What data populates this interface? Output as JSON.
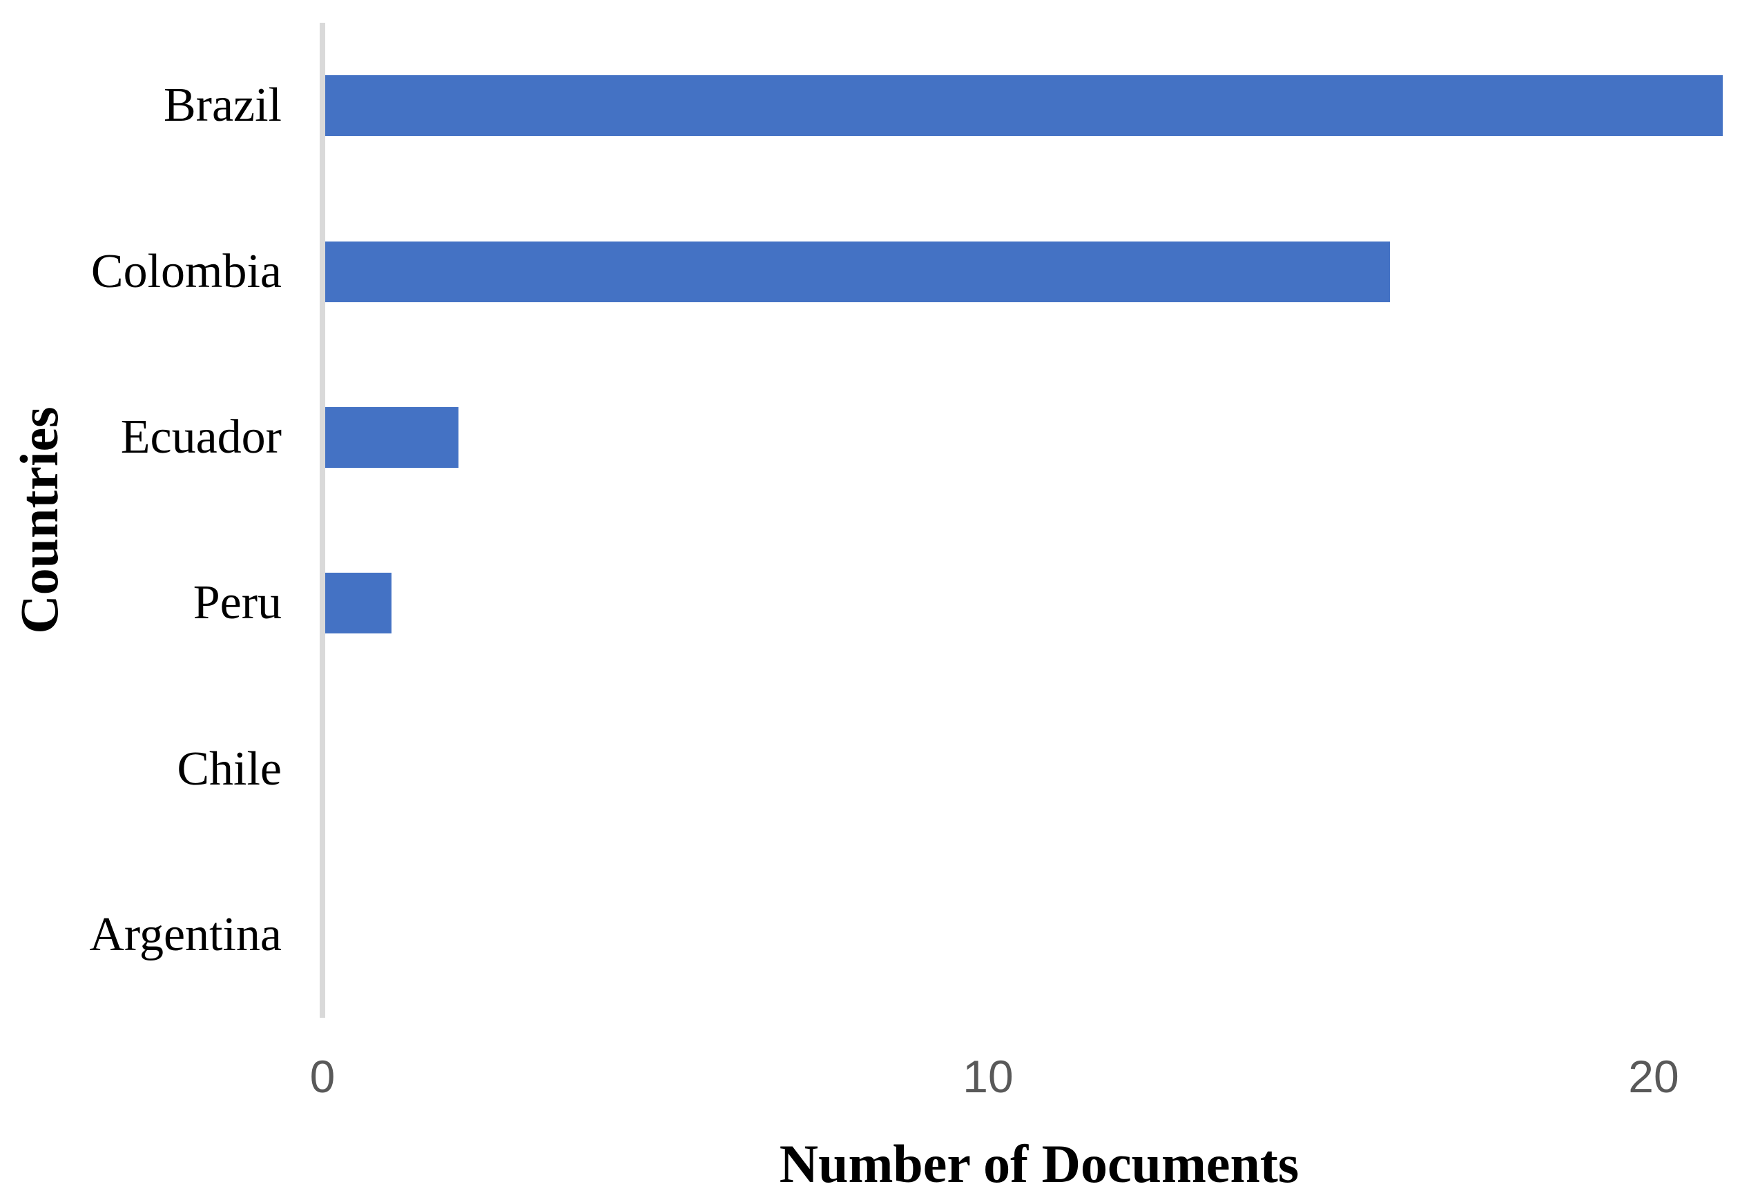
{
  "chart_data": {
    "type": "bar",
    "orientation": "horizontal",
    "title": "",
    "xlabel": "Number of Documents",
    "ylabel": "Countries",
    "categories": [
      "Brazil",
      "Colombia",
      "Ecuador",
      "Peru",
      "Chile",
      "Argentina"
    ],
    "values": [
      21,
      16,
      2,
      1,
      0,
      0
    ],
    "xticks": [
      0,
      10,
      20
    ],
    "xlim": [
      0,
      21.3
    ],
    "grid": false,
    "legend": null,
    "bar_color": "#4472C4",
    "axis_line_color": "#D9D9D9",
    "tick_label_color": "#595959",
    "category_label_color": "#000000",
    "background_color": "#FFFFFF"
  }
}
